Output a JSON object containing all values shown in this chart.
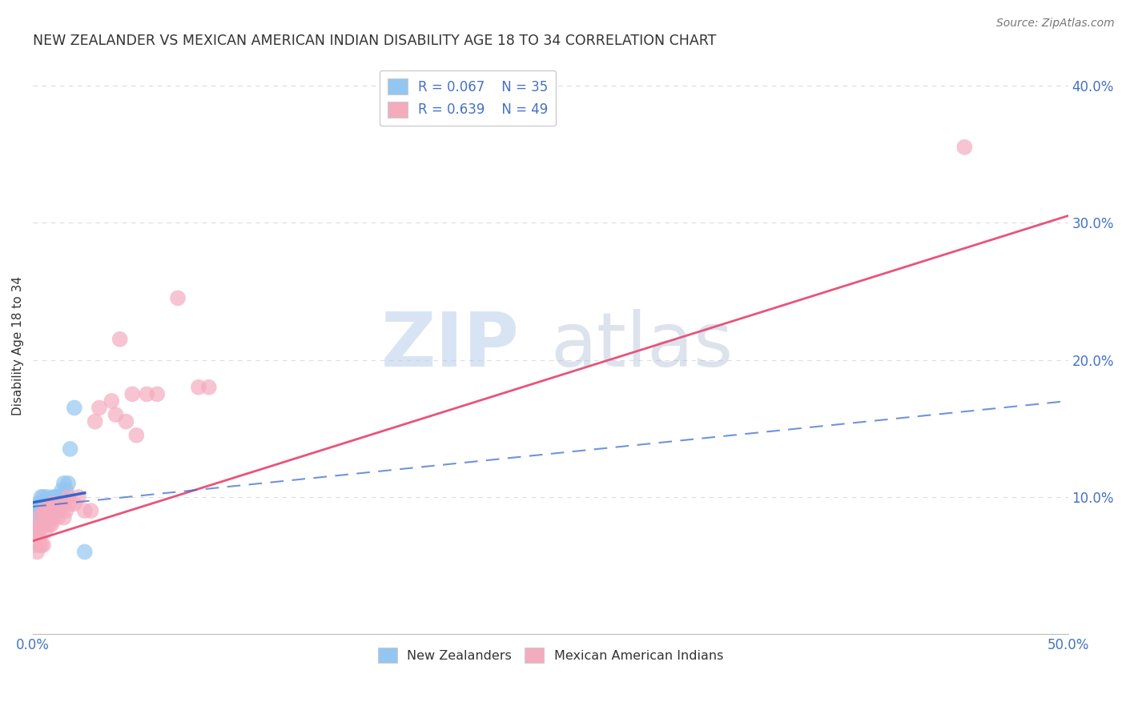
{
  "title": "NEW ZEALANDER VS MEXICAN AMERICAN INDIAN DISABILITY AGE 18 TO 34 CORRELATION CHART",
  "source": "Source: ZipAtlas.com",
  "ylabel": "Disability Age 18 to 34",
  "xlim": [
    0.0,
    0.5
  ],
  "ylim": [
    0.0,
    0.42
  ],
  "xticks": [
    0.0,
    0.1,
    0.2,
    0.3,
    0.4,
    0.5
  ],
  "xticklabels": [
    "0.0%",
    "",
    "",
    "",
    "",
    "50.0%"
  ],
  "yticks": [
    0.1,
    0.2,
    0.3,
    0.4
  ],
  "yticklabels": [
    "10.0%",
    "20.0%",
    "30.0%",
    "40.0%"
  ],
  "watermark_zip": "ZIP",
  "watermark_atlas": "atlas",
  "nz_color": "#93C6F0",
  "mex_color": "#F5ABBE",
  "nz_line_color": "#3366CC",
  "mex_line_color": "#E8547A",
  "grid_color": "#DDDDDD",
  "title_color": "#333333",
  "axis_color": "#4472C4",
  "background_color": "#FFFFFF",
  "nz_scatter_x": [
    0.001,
    0.002,
    0.002,
    0.003,
    0.003,
    0.003,
    0.004,
    0.004,
    0.004,
    0.005,
    0.005,
    0.005,
    0.006,
    0.006,
    0.007,
    0.007,
    0.007,
    0.008,
    0.008,
    0.009,
    0.009,
    0.01,
    0.01,
    0.011,
    0.011,
    0.012,
    0.012,
    0.013,
    0.014,
    0.015,
    0.016,
    0.017,
    0.018,
    0.02,
    0.025
  ],
  "nz_scatter_y": [
    0.075,
    0.085,
    0.095,
    0.08,
    0.09,
    0.095,
    0.085,
    0.09,
    0.1,
    0.085,
    0.09,
    0.1,
    0.09,
    0.095,
    0.09,
    0.095,
    0.1,
    0.09,
    0.095,
    0.092,
    0.097,
    0.09,
    0.1,
    0.095,
    0.1,
    0.095,
    0.1,
    0.1,
    0.105,
    0.11,
    0.105,
    0.11,
    0.135,
    0.165,
    0.06
  ],
  "mex_scatter_x": [
    0.001,
    0.001,
    0.002,
    0.002,
    0.003,
    0.003,
    0.003,
    0.004,
    0.004,
    0.005,
    0.005,
    0.005,
    0.006,
    0.006,
    0.007,
    0.007,
    0.008,
    0.008,
    0.009,
    0.009,
    0.01,
    0.01,
    0.011,
    0.012,
    0.012,
    0.013,
    0.015,
    0.015,
    0.016,
    0.017,
    0.018,
    0.02,
    0.022,
    0.025,
    0.028,
    0.03,
    0.032,
    0.038,
    0.04,
    0.042,
    0.045,
    0.048,
    0.05,
    0.055,
    0.06,
    0.07,
    0.08,
    0.085,
    0.45
  ],
  "mex_scatter_y": [
    0.065,
    0.075,
    0.06,
    0.075,
    0.065,
    0.075,
    0.085,
    0.065,
    0.08,
    0.065,
    0.08,
    0.09,
    0.075,
    0.09,
    0.08,
    0.09,
    0.08,
    0.09,
    0.08,
    0.095,
    0.085,
    0.095,
    0.095,
    0.085,
    0.095,
    0.09,
    0.085,
    0.095,
    0.09,
    0.1,
    0.095,
    0.095,
    0.1,
    0.09,
    0.09,
    0.155,
    0.165,
    0.17,
    0.16,
    0.215,
    0.155,
    0.175,
    0.145,
    0.175,
    0.175,
    0.245,
    0.18,
    0.18,
    0.355
  ],
  "nz_line_x0": 0.0,
  "nz_line_x1": 0.5,
  "nz_line_y0": 0.093,
  "nz_line_y1": 0.17,
  "mex_line_x0": 0.0,
  "mex_line_x1": 0.5,
  "mex_line_y0": 0.068,
  "mex_line_y1": 0.305
}
